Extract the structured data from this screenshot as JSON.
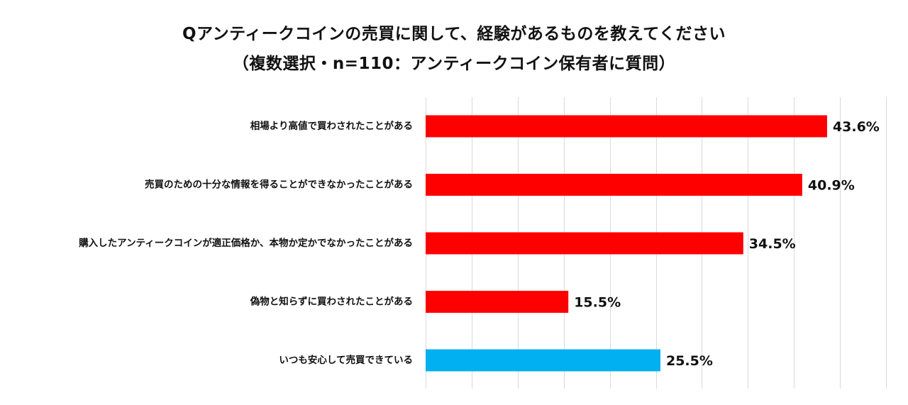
{
  "header": {
    "title_line_1": "Qアンティークコインの売買に関して、経験があるものを教えてください",
    "title_line_2": "（複数選択・n=110：アンティークコイン保有者に質問）"
  },
  "chart_data": {
    "type": "bar",
    "orientation": "horizontal",
    "title": "Qアンティークコインの売買に関して、経験があるものを教えてください",
    "subtitle": "（複数選択・n=110：アンティークコイン保有者に質問）",
    "xlabel": "",
    "ylabel": "",
    "xlim": [
      0,
      50
    ],
    "grid": true,
    "legend": "none",
    "categories": [
      "相場より高値で買わされたことがある",
      "売買のための十分な情報を得ることができなかったことがある",
      "購入したアンティークコインが適正価格か、本物か定かでなかったことがある",
      "偽物と知らずに買わされたことがある",
      "いつも安心して売買できている"
    ],
    "values": [
      43.6,
      40.9,
      34.5,
      15.5,
      25.5
    ],
    "value_labels": [
      "43.6%",
      "40.9%",
      "34.5%",
      "15.5%",
      "25.5%"
    ],
    "bar_colors": [
      "#ff0000",
      "#ff0000",
      "#ff0000",
      "#ff0000",
      "#00b0f0"
    ]
  }
}
